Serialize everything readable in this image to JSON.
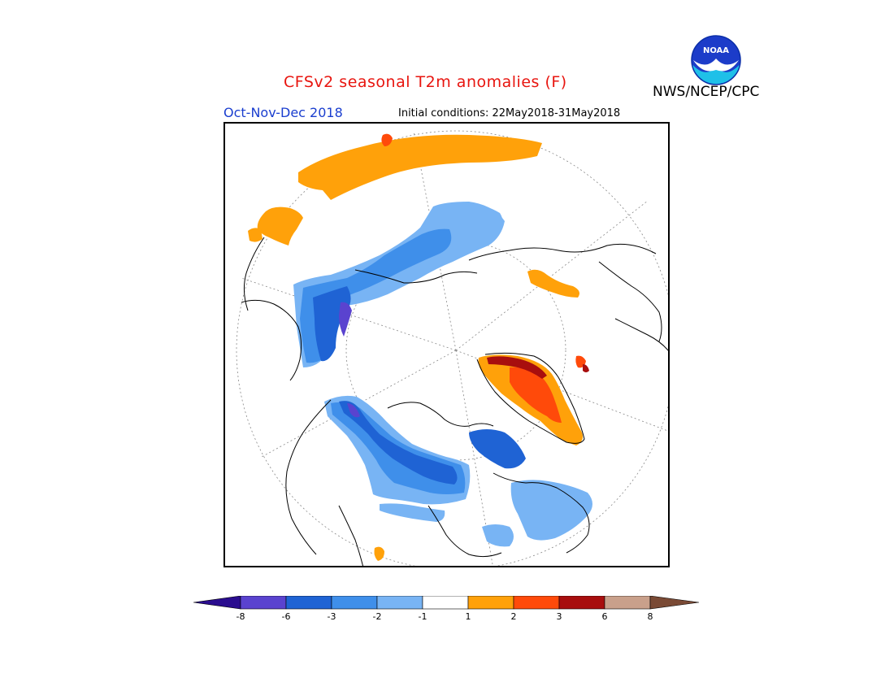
{
  "header": {
    "title": "CFSv2 seasonal T2m anomalies (F)",
    "season": "Oct-Nov-Dec 2018",
    "initial_conditions": "Initial conditions: 22May2018-31May2018",
    "agency": "NWS/NCEP/CPC",
    "logo_text": "NOAA"
  },
  "colors": {
    "title": "#e8150f",
    "season": "#1a3ecf",
    "map_border": "#000000"
  },
  "legend": {
    "bins": [
      {
        "color": "#2a0d8f",
        "range": "< -8"
      },
      {
        "color": "#5a43cf",
        "range": "-8 to -6"
      },
      {
        "color": "#1f63d4",
        "range": "-6 to -3"
      },
      {
        "color": "#3f8fea",
        "range": "-3 to -2"
      },
      {
        "color": "#78b4f4",
        "range": "-2 to -1"
      },
      {
        "color": "#ffffff",
        "range": "-1 to 1"
      },
      {
        "color": "#ffa10a",
        "range": "1 to 2"
      },
      {
        "color": "#ff4a0a",
        "range": "2 to 3"
      },
      {
        "color": "#a80e0e",
        "range": "3 to 6"
      },
      {
        "color": "#c9a08b",
        "range": "6 to 8"
      },
      {
        "color": "#7a4a35",
        "range": "> 8"
      }
    ],
    "tick_labels": [
      "-8",
      "-6",
      "-3",
      "-2",
      "-1",
      "1",
      "2",
      "3",
      "6",
      "8"
    ]
  },
  "map": {
    "projection": "north-polar-stereographic",
    "anomaly_regions": [
      {
        "region": "Russia/Siberia north coast",
        "category": "1 to 2"
      },
      {
        "region": "Barents region small spot",
        "category": "2 to 3"
      },
      {
        "region": "Scandinavia/Western Europe",
        "category": "1 to 2"
      },
      {
        "region": "Eastern Siberia/Kamchatka",
        "category": "-2 to -1"
      },
      {
        "region": "Central Asia/Mongolia",
        "category": "-3 to -2"
      },
      {
        "region": "Far East Russia",
        "category": "-6 to -3"
      },
      {
        "region": "Eastern Siberia core",
        "category": "-8 to -6"
      },
      {
        "region": "Greenland",
        "category": "1 to 2"
      },
      {
        "region": "Greenland south",
        "category": "2 to 3"
      },
      {
        "region": "Greenland coast",
        "category": "3 to 6"
      },
      {
        "region": "Iceland",
        "category": "3 to 6"
      },
      {
        "region": "Alaska",
        "category": "-3 to -2"
      },
      {
        "region": "Western Canada",
        "category": "-6 to -3"
      },
      {
        "region": "Canadian Archipelago",
        "category": "-6 to -3"
      },
      {
        "region": "Hudson Bay region",
        "category": "-6 to -3"
      },
      {
        "region": "Eastern Canada/Labrador",
        "category": "-2 to -1"
      },
      {
        "region": "North Pacific",
        "category": "1 to 2"
      },
      {
        "region": "Mediterranean",
        "category": "1 to 2"
      }
    ]
  }
}
